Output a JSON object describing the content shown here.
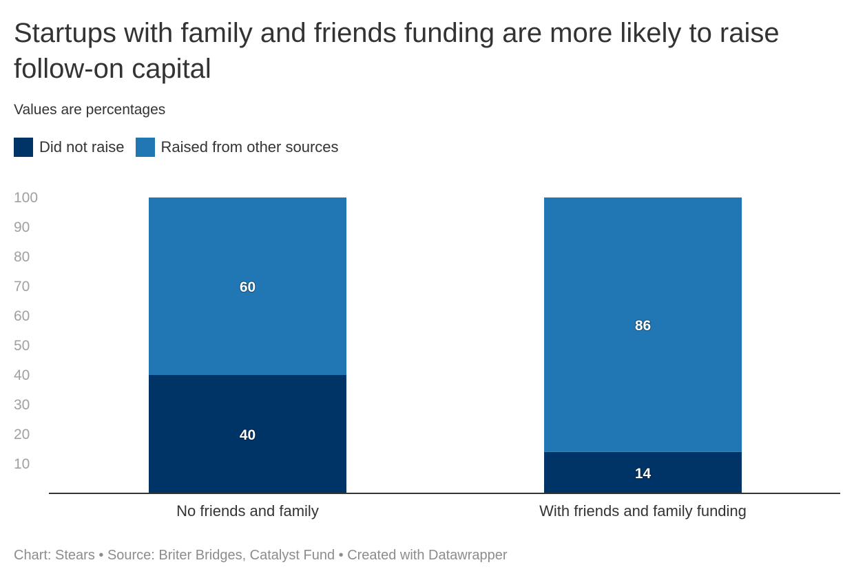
{
  "header": {
    "title": "Startups with family and friends funding are more likely to raise follow-on capital",
    "subtitle": "Values are percentages"
  },
  "footer": {
    "credit": "Chart: Stears • Source: Briter Bridges, Catalyst Fund • Created with Datawrapper"
  },
  "chart_data": {
    "type": "bar",
    "stacked": true,
    "categories": [
      "No friends and family",
      "With friends and family funding"
    ],
    "series": [
      {
        "name": "Did not raise",
        "values": [
          40,
          14
        ],
        "color": "#003366"
      },
      {
        "name": "Raised from other sources",
        "values": [
          60,
          86
        ],
        "color": "#2077b4"
      }
    ],
    "title": "Startups with family and friends funding are more likely to raise follow-on capital",
    "subtitle": "Values are percentages",
    "xlabel": "",
    "ylabel": "",
    "ylim": [
      0,
      100
    ],
    "yticks": [
      10,
      20,
      30,
      40,
      50,
      60,
      70,
      80,
      90,
      100
    ],
    "grid": false,
    "legend": "top-left"
  }
}
